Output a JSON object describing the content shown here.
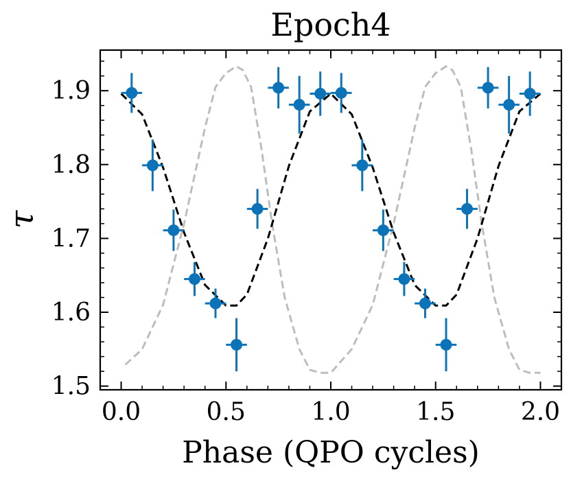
{
  "chart_data": {
    "type": "scatter",
    "title": "Epoch4",
    "xlabel": "Phase (QPO cycles)",
    "ylabel": "τ",
    "xlim": [
      -0.1,
      2.1
    ],
    "ylim": [
      1.495,
      1.955
    ],
    "xticks": [
      0.0,
      0.5,
      1.0,
      1.5,
      2.0
    ],
    "xtick_labels": [
      "0.0",
      "0.5",
      "1.0",
      "1.5",
      "2.0"
    ],
    "yticks": [
      1.5,
      1.6,
      1.7,
      1.8,
      1.9
    ],
    "ytick_labels": [
      "1.5",
      "1.6",
      "1.7",
      "1.8",
      "1.9"
    ],
    "colors": {
      "data": "#0c73b8",
      "model": "#000000",
      "reference": "#bdbdbd"
    },
    "series": [
      {
        "name": "data",
        "style": "errorbar",
        "x": [
          0.05,
          0.15,
          0.25,
          0.35,
          0.45,
          0.55,
          0.65,
          0.75,
          0.85,
          0.95,
          1.05,
          1.15,
          1.25,
          1.35,
          1.45,
          1.55,
          1.65,
          1.75,
          1.85,
          1.95
        ],
        "y": [
          1.897,
          1.799,
          1.711,
          1.645,
          1.612,
          1.556,
          1.74,
          1.904,
          1.881,
          1.896,
          1.897,
          1.799,
          1.711,
          1.645,
          1.612,
          1.556,
          1.74,
          1.904,
          1.881,
          1.896
        ],
        "xerr": 0.05,
        "yerr": [
          0.027,
          0.035,
          0.028,
          0.023,
          0.02,
          0.036,
          0.027,
          0.028,
          0.039,
          0.03,
          0.027,
          0.035,
          0.028,
          0.023,
          0.02,
          0.036,
          0.027,
          0.028,
          0.039,
          0.03
        ]
      },
      {
        "name": "model",
        "style": "dashed",
        "x": [
          0.0,
          0.1,
          0.2,
          0.3,
          0.4,
          0.5,
          0.55,
          0.6,
          0.7,
          0.8,
          0.9,
          1.0,
          1.1,
          1.2,
          1.3,
          1.4,
          1.5,
          1.55,
          1.6,
          1.7,
          1.8,
          1.9,
          2.0
        ],
        "y": [
          1.896,
          1.868,
          1.796,
          1.708,
          1.637,
          1.609,
          1.609,
          1.624,
          1.7,
          1.798,
          1.872,
          1.896,
          1.868,
          1.796,
          1.708,
          1.637,
          1.609,
          1.609,
          1.624,
          1.7,
          1.798,
          1.872,
          1.896
        ]
      },
      {
        "name": "reference",
        "style": "dashed",
        "x": [
          0.02,
          0.1,
          0.2,
          0.3,
          0.4,
          0.45,
          0.5,
          0.55,
          0.58,
          0.62,
          0.67,
          0.72,
          0.78,
          0.85,
          0.9,
          0.95,
          1.0,
          1.1,
          1.2,
          1.3,
          1.4,
          1.45,
          1.5,
          1.55,
          1.58,
          1.62,
          1.67,
          1.72,
          1.78,
          1.85,
          1.9,
          1.95,
          2.0
        ],
        "y": [
          1.529,
          1.55,
          1.61,
          1.72,
          1.85,
          1.905,
          1.924,
          1.933,
          1.928,
          1.905,
          1.82,
          1.72,
          1.62,
          1.55,
          1.522,
          1.518,
          1.518,
          1.55,
          1.61,
          1.72,
          1.85,
          1.905,
          1.924,
          1.933,
          1.928,
          1.905,
          1.82,
          1.72,
          1.62,
          1.55,
          1.522,
          1.518,
          1.518
        ]
      }
    ]
  }
}
